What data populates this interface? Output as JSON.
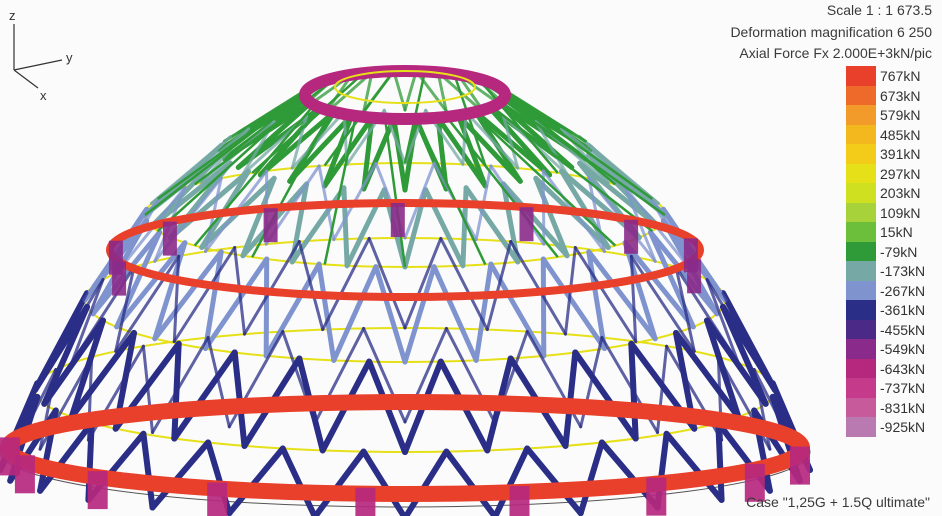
{
  "header": {
    "scale": "Scale 1 : 1 673.5",
    "deformation": "Deformation magnification 6 250",
    "axial": "Axial Force Fx 2.000E+3kN/pic"
  },
  "case_label": "Case \"1,25G + 1.5Q ultimate\"",
  "axes": {
    "z": "z",
    "y": "y",
    "x": "x"
  },
  "legend": [
    {
      "label": "767kN",
      "color": "#e8402a"
    },
    {
      "label": "673kN",
      "color": "#ee6a2a"
    },
    {
      "label": "579kN",
      "color": "#f29a2a"
    },
    {
      "label": "485kN",
      "color": "#f4b81f"
    },
    {
      "label": "391kN",
      "color": "#f2cc18"
    },
    {
      "label": "297kN",
      "color": "#e6e018"
    },
    {
      "label": "203kN",
      "color": "#cfe020"
    },
    {
      "label": "109kN",
      "color": "#a8d23a"
    },
    {
      "label": "15kN",
      "color": "#6cbf3a"
    },
    {
      "label": "-79kN",
      "color": "#2f9a38"
    },
    {
      "label": "-173kN",
      "color": "#76a9a6"
    },
    {
      "label": "-267kN",
      "color": "#7f94cf"
    },
    {
      "label": "-361kN",
      "color": "#2a2e86"
    },
    {
      "label": "-455kN",
      "color": "#4a2a86"
    },
    {
      "label": "-549kN",
      "color": "#8a2a8a"
    },
    {
      "label": "-643kN",
      "color": "#b5287e"
    },
    {
      "label": "-737kN",
      "color": "#c53a8a"
    },
    {
      "label": "-831kN",
      "color": "#c75a9a"
    },
    {
      "label": "-925kN",
      "color": "#b87ab0"
    }
  ]
}
